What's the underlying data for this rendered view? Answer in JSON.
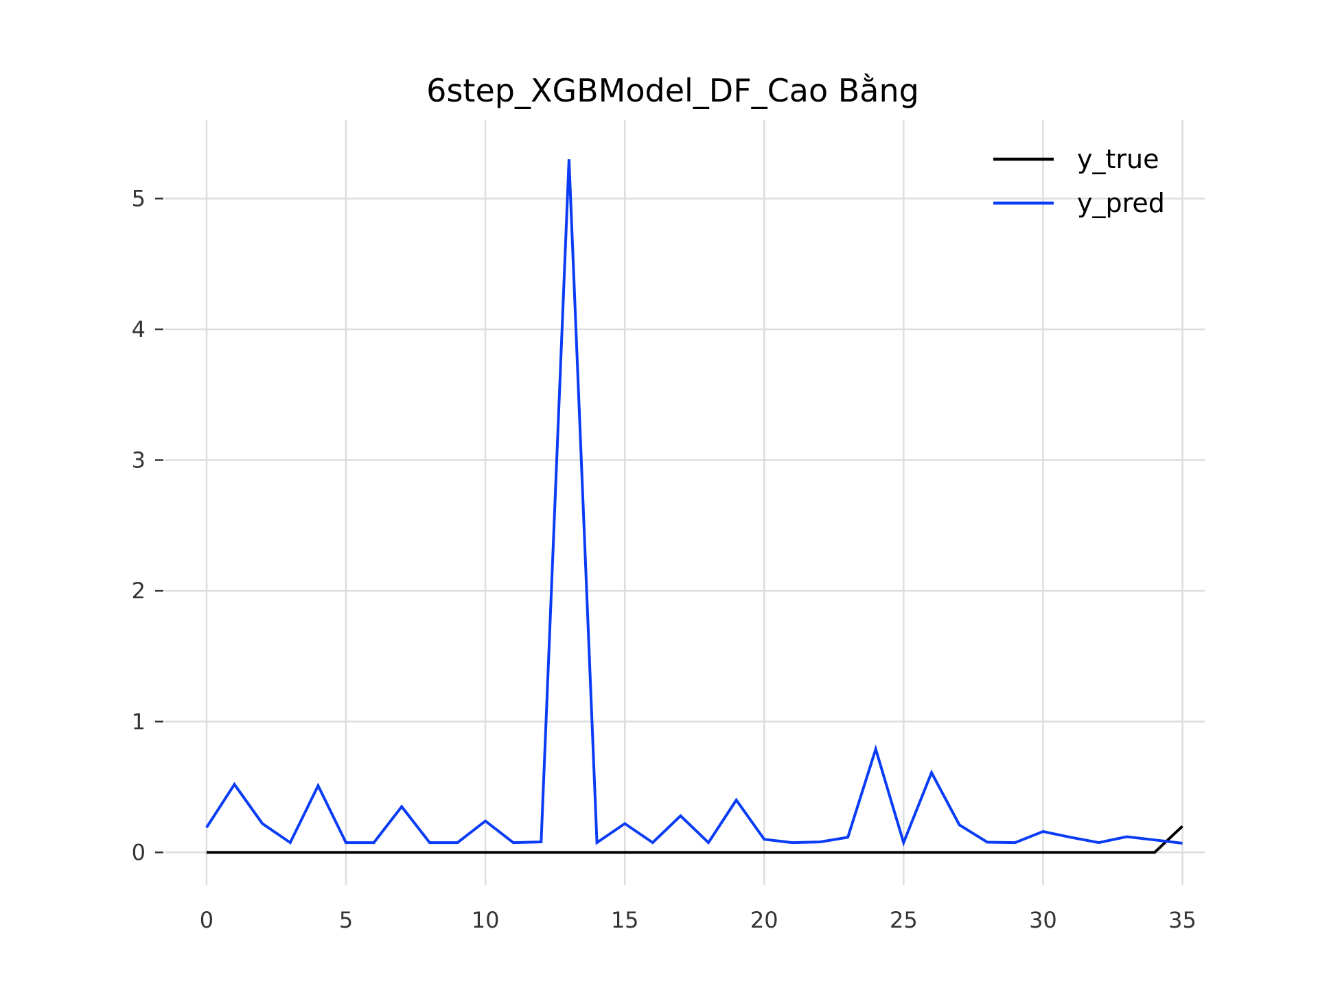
{
  "chart_data": {
    "type": "line",
    "title": "6step_XGBModel_DF_Cao Bằng",
    "xlabel": "",
    "ylabel": "",
    "x": [
      0,
      1,
      2,
      3,
      4,
      5,
      6,
      7,
      8,
      9,
      10,
      11,
      12,
      13,
      14,
      15,
      16,
      17,
      18,
      19,
      20,
      21,
      22,
      23,
      24,
      25,
      26,
      27,
      28,
      29,
      30,
      31,
      32,
      33,
      34,
      35
    ],
    "xlim": [
      -1.5,
      35.8
    ],
    "ylim": [
      -0.25,
      5.6
    ],
    "xticks": [
      0,
      5,
      10,
      15,
      20,
      25,
      30,
      35
    ],
    "yticks": [
      0,
      1,
      2,
      3,
      4,
      5
    ],
    "grid": true,
    "legend_position": "top-right",
    "series": [
      {
        "name": "y_true",
        "color": "#000000",
        "values": [
          0,
          0,
          0,
          0,
          0,
          0,
          0,
          0,
          0,
          0,
          0,
          0,
          0,
          0,
          0,
          0,
          0,
          0,
          0,
          0,
          0,
          0,
          0,
          0,
          0,
          0,
          0,
          0,
          0,
          0,
          0,
          0,
          0,
          0,
          0,
          0.2
        ]
      },
      {
        "name": "y_pred",
        "color": "#0a3cf5",
        "values": [
          0.19,
          0.52,
          0.22,
          0.075,
          0.51,
          0.075,
          0.075,
          0.35,
          0.075,
          0.075,
          0.24,
          0.075,
          0.08,
          5.3,
          0.075,
          0.22,
          0.075,
          0.28,
          0.075,
          0.4,
          0.1,
          0.075,
          0.08,
          0.115,
          0.79,
          0.075,
          0.61,
          0.21,
          0.078,
          0.075,
          0.16,
          0.115,
          0.075,
          0.12,
          0.095,
          0.07
        ]
      }
    ]
  }
}
